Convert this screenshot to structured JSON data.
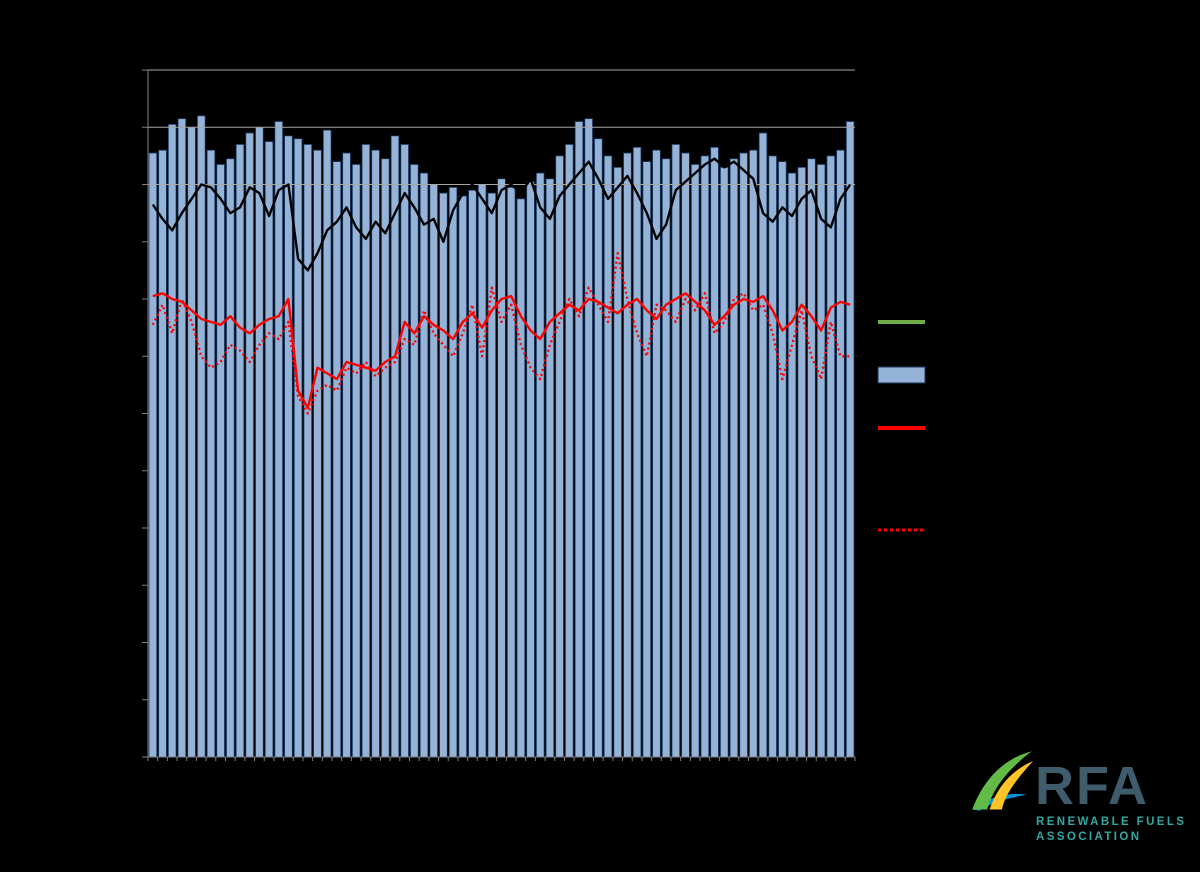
{
  "page": {
    "background": "#000000"
  },
  "chart_data": {
    "type": "bar",
    "title": "",
    "xlabel": "",
    "ylabel": "",
    "ylim": [
      0,
      1200
    ],
    "y_tick_interval": 100,
    "gridlines_visible_at": [
      1000,
      1100,
      1200
    ],
    "grid": true,
    "legend_position": "right",
    "axis_tick_labels_visible": false,
    "x": [
      1,
      2,
      3,
      4,
      5,
      6,
      7,
      8,
      9,
      10,
      11,
      12,
      13,
      14,
      15,
      16,
      17,
      18,
      19,
      20,
      21,
      22,
      23,
      24,
      25,
      26,
      27,
      28,
      29,
      30,
      31,
      32,
      33,
      34,
      35,
      36,
      37,
      38,
      39,
      40,
      41,
      42,
      43,
      44,
      45,
      46,
      47,
      48,
      49,
      50,
      51,
      52,
      53,
      54,
      55,
      56,
      57,
      58,
      59,
      60,
      61,
      62,
      63,
      64,
      65,
      66,
      67,
      68,
      69,
      70,
      71,
      72,
      73
    ],
    "series": [
      {
        "name": "weekly-bars",
        "type": "bar",
        "color": "#95B3D7",
        "border_color": "#17375E",
        "values": [
          1055,
          1060,
          1105,
          1115,
          1100,
          1120,
          1060,
          1035,
          1045,
          1070,
          1090,
          1100,
          1075,
          1110,
          1085,
          1080,
          1070,
          1060,
          1095,
          1040,
          1055,
          1035,
          1070,
          1060,
          1045,
          1085,
          1070,
          1035,
          1020,
          1000,
          985,
          995,
          980,
          990,
          1000,
          985,
          1010,
          995,
          975,
          1005,
          1020,
          1010,
          1050,
          1070,
          1110,
          1115,
          1080,
          1050,
          1030,
          1055,
          1065,
          1040,
          1060,
          1045,
          1070,
          1055,
          1035,
          1050,
          1065,
          1030,
          1045,
          1055,
          1060,
          1090,
          1050,
          1040,
          1020,
          1030,
          1045,
          1035,
          1050,
          1060,
          1110
        ]
      },
      {
        "name": "black-line",
        "type": "line",
        "style": "solid",
        "color": "#000000",
        "values": [
          965,
          940,
          920,
          950,
          975,
          1000,
          995,
          975,
          950,
          960,
          995,
          985,
          945,
          990,
          1000,
          870,
          850,
          880,
          920,
          935,
          960,
          925,
          905,
          935,
          915,
          950,
          985,
          960,
          930,
          940,
          900,
          955,
          985,
          1000,
          975,
          950,
          990,
          1000,
          985,
          1010,
          960,
          940,
          980,
          1000,
          1020,
          1040,
          1010,
          975,
          995,
          1015,
          985,
          950,
          905,
          930,
          990,
          1005,
          1020,
          1035,
          1045,
          1030,
          1040,
          1025,
          1010,
          950,
          935,
          960,
          945,
          975,
          990,
          940,
          925,
          975,
          1000
        ]
      },
      {
        "name": "red-solid-line",
        "type": "line",
        "style": "solid",
        "color": "#FF0000",
        "values": [
          805,
          810,
          800,
          795,
          780,
          765,
          760,
          755,
          770,
          750,
          740,
          755,
          765,
          770,
          800,
          640,
          610,
          680,
          670,
          660,
          690,
          685,
          680,
          675,
          690,
          700,
          760,
          740,
          770,
          755,
          745,
          730,
          760,
          775,
          750,
          780,
          800,
          805,
          770,
          745,
          730,
          760,
          775,
          790,
          780,
          800,
          795,
          785,
          775,
          790,
          800,
          780,
          765,
          790,
          800,
          810,
          795,
          780,
          755,
          770,
          790,
          800,
          795,
          805,
          780,
          745,
          760,
          790,
          770,
          745,
          785,
          795,
          790
        ]
      },
      {
        "name": "red-dotted-line",
        "type": "line",
        "style": "dotted",
        "color": "#FF0000",
        "values": [
          755,
          790,
          740,
          800,
          760,
          700,
          680,
          690,
          720,
          710,
          690,
          720,
          740,
          730,
          760,
          630,
          600,
          640,
          650,
          640,
          680,
          670,
          690,
          665,
          680,
          690,
          730,
          720,
          780,
          740,
          720,
          700,
          740,
          790,
          700,
          820,
          760,
          790,
          720,
          680,
          660,
          720,
          760,
          800,
          770,
          820,
          790,
          760,
          880,
          800,
          740,
          700,
          790,
          780,
          760,
          800,
          780,
          810,
          740,
          760,
          800,
          810,
          780,
          790,
          740,
          660,
          720,
          780,
          700,
          660,
          760,
          700,
          700
        ]
      }
    ],
    "legend": [
      {
        "name": "green-line-key",
        "swatch": "line",
        "color": "#70AD47"
      },
      {
        "name": "blue-bar-key",
        "swatch": "box",
        "color": "#95B3D7",
        "border": "#17375E"
      },
      {
        "name": "red-line-key",
        "swatch": "line",
        "color": "#FF0000"
      },
      {
        "name": "red-dotted-line-key",
        "swatch": "dotted-line",
        "color": "#FF0000"
      }
    ]
  },
  "logo": {
    "text": "RFA",
    "tagline_line1": "RENEWABLE FUELS",
    "tagline_line2": "ASSOCIATION",
    "text_color": "#3E5C6B",
    "tagline_color": "#2FA8A3",
    "swoosh_green": "#62BB46",
    "swoosh_yellow": "#FFC425",
    "swoosh_blue": "#0095DA"
  }
}
